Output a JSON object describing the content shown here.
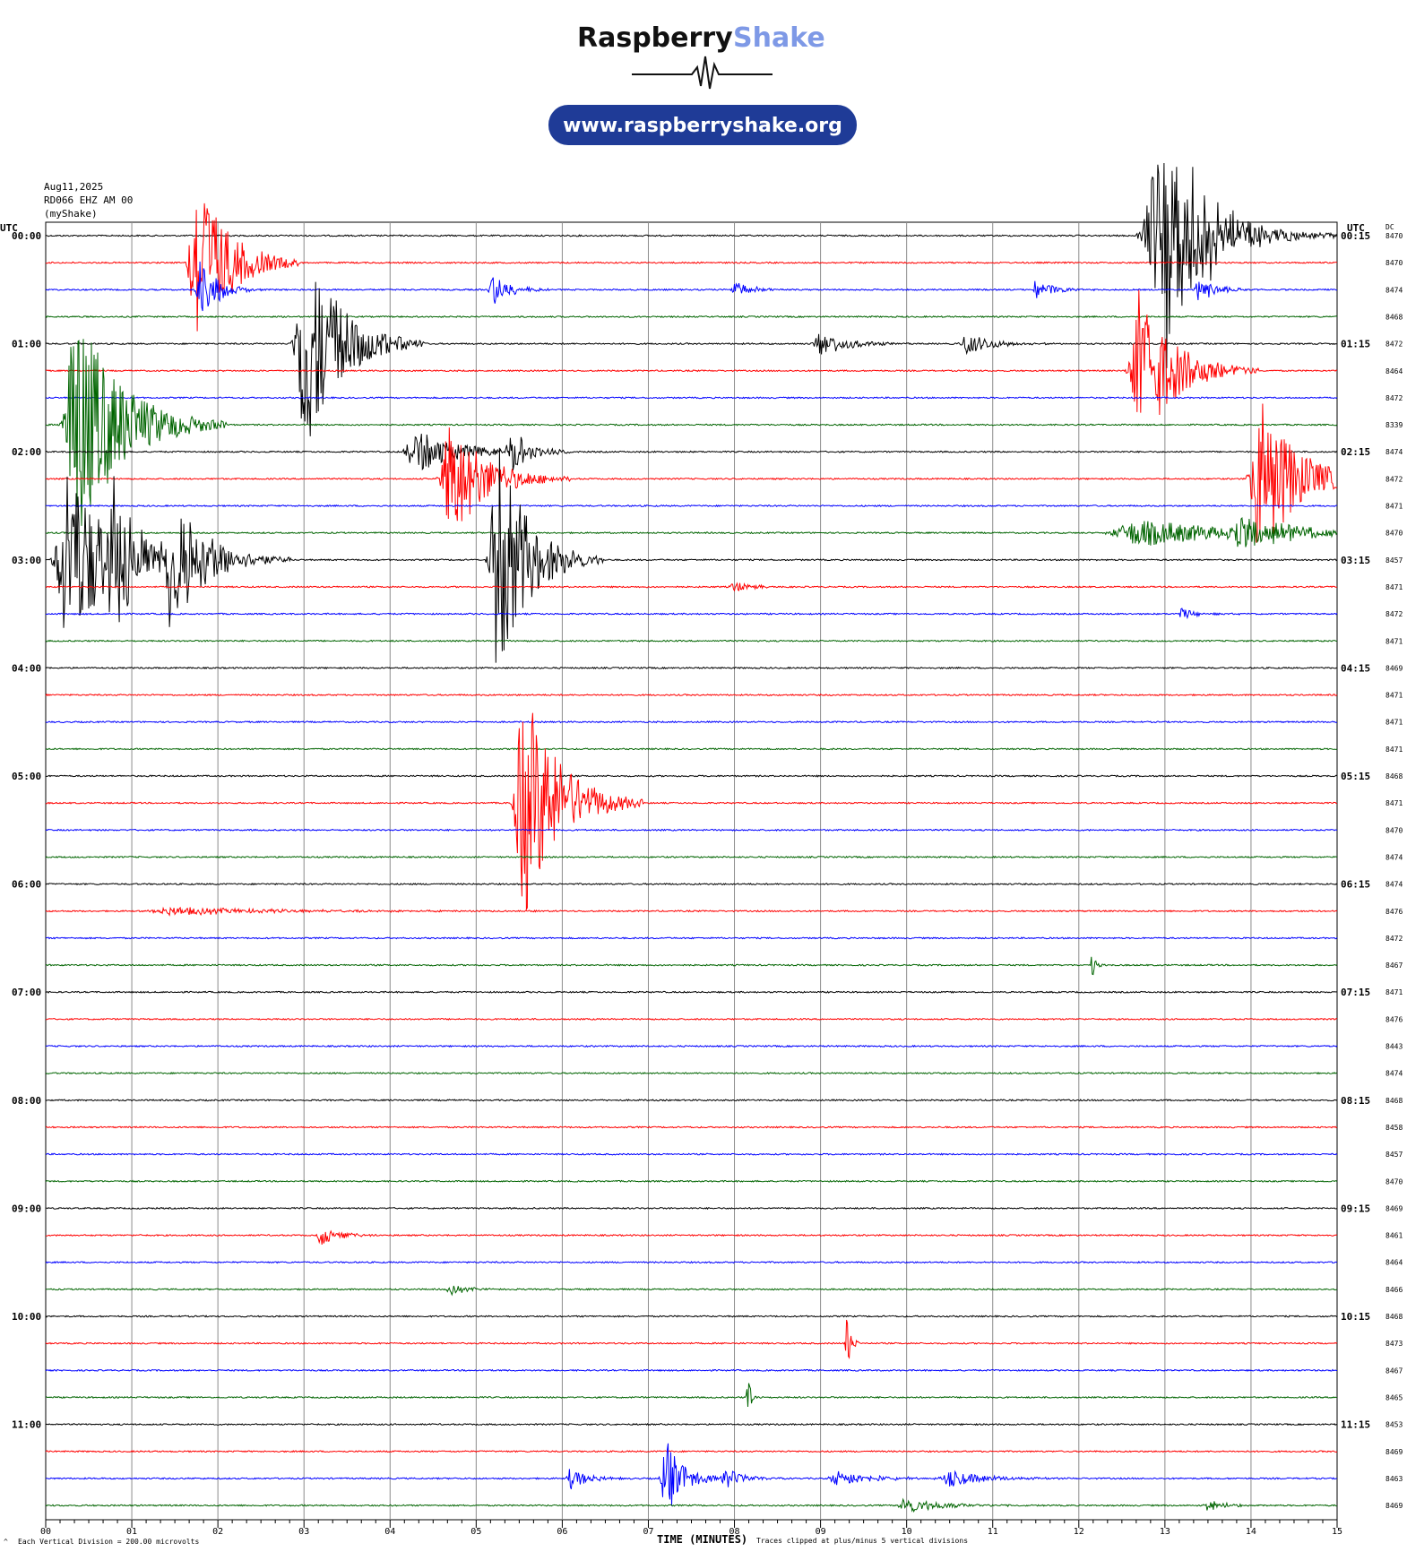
{
  "header": {
    "brand_word1": "Raspberry",
    "brand_word2": "Shake",
    "url_button": "www.raspberryshake.org"
  },
  "meta": {
    "date": "Aug11,2025",
    "station": "RD066 EHZ AM 00",
    "source": "(myShake)"
  },
  "axes": {
    "left_unit": "UTC",
    "right_unit": "UTC",
    "dc_label": "DC",
    "x_title": "TIME (MINUTES)",
    "x_ticks": [
      "00",
      "01",
      "02",
      "03",
      "04",
      "05",
      "06",
      "07",
      "08",
      "09",
      "10",
      "11",
      "12",
      "13",
      "14",
      "15"
    ]
  },
  "footer": {
    "scale_note": "Each Vertical Division =  200.00 microvolts",
    "clip_note": "Traces clipped at plus/minus 5 vertical divisions"
  },
  "colors": {
    "trace_cycle": [
      "#000000",
      "#ff0000",
      "#0000ff",
      "#006400"
    ],
    "brand_dark": "#111111",
    "brand_accent": "#7e99e6",
    "url_bg": "#1f3b97",
    "grid": "#808080"
  },
  "chart_data": {
    "type": "line",
    "title": "RD066 EHZ AM 00",
    "xlabel": "TIME (MINUTES)",
    "ylabel": "UTC",
    "xlim": [
      0,
      15
    ],
    "rows": [
      {
        "utc_left": "00:00",
        "utc_right": "00:15",
        "dc": "8470",
        "events": [
          [
            13.0,
            4.2,
            0.35
          ],
          [
            12.9,
            2.6,
            0.6
          ]
        ]
      },
      {
        "utc_left": "",
        "utc_right": "",
        "dc": "8470",
        "events": [
          [
            1.75,
            3.5,
            0.35
          ]
        ]
      },
      {
        "utc_left": "",
        "utc_right": "",
        "dc": "8474",
        "events": [
          [
            1.8,
            1.2,
            0.2
          ],
          [
            5.2,
            0.6,
            0.2
          ],
          [
            8.0,
            0.3,
            0.2
          ],
          [
            11.5,
            0.4,
            0.2
          ],
          [
            13.4,
            0.5,
            0.2
          ]
        ]
      },
      {
        "utc_left": "",
        "utc_right": "",
        "dc": "8468",
        "events": []
      },
      {
        "utc_left": "01:00",
        "utc_right": "01:15",
        "dc": "8472",
        "events": [
          [
            3.0,
            4.2,
            0.4
          ],
          [
            9.0,
            0.5,
            0.3
          ],
          [
            10.7,
            0.4,
            0.3
          ]
        ]
      },
      {
        "utc_left": "",
        "utc_right": "",
        "dc": "8464",
        "events": [
          [
            12.7,
            3.0,
            0.4
          ]
        ]
      },
      {
        "utc_left": "",
        "utc_right": "",
        "dc": "8472",
        "events": []
      },
      {
        "utc_left": "",
        "utc_right": "",
        "dc": "8339",
        "events": [
          [
            0.35,
            4.6,
            0.5
          ]
        ]
      },
      {
        "utc_left": "02:00",
        "utc_right": "02:15",
        "dc": "8474",
        "events": [
          [
            4.3,
            0.8,
            0.5
          ],
          [
            5.4,
            0.9,
            0.2
          ]
        ]
      },
      {
        "utc_left": "",
        "utc_right": "",
        "dc": "8472",
        "events": [
          [
            4.7,
            2.3,
            0.4
          ],
          [
            14.1,
            3.3,
            0.4
          ]
        ]
      },
      {
        "utc_left": "",
        "utc_right": "",
        "dc": "8471",
        "events": []
      },
      {
        "utc_left": "",
        "utc_right": "",
        "dc": "8470",
        "events": [
          [
            12.7,
            0.5,
            1.2
          ],
          [
            13.9,
            0.6,
            0.6
          ]
        ]
      },
      {
        "utc_left": "03:00",
        "utc_right": "03:15",
        "dc": "8457",
        "events": [
          [
            0.25,
            3.6,
            0.5
          ],
          [
            0.8,
            2.2,
            0.3
          ],
          [
            1.45,
            2.6,
            0.4
          ],
          [
            5.25,
            4.4,
            0.35
          ]
        ]
      },
      {
        "utc_left": "",
        "utc_right": "",
        "dc": "8471",
        "events": [
          [
            8.0,
            0.2,
            0.2
          ]
        ]
      },
      {
        "utc_left": "",
        "utc_right": "",
        "dc": "8472",
        "events": [
          [
            13.2,
            0.2,
            0.2
          ]
        ]
      },
      {
        "utc_left": "",
        "utc_right": "",
        "dc": "8471",
        "events": []
      },
      {
        "utc_left": "04:00",
        "utc_right": "04:15",
        "dc": "8469",
        "events": []
      },
      {
        "utc_left": "",
        "utc_right": "",
        "dc": "8471",
        "events": []
      },
      {
        "utc_left": "",
        "utc_right": "",
        "dc": "8471",
        "events": []
      },
      {
        "utc_left": "",
        "utc_right": "",
        "dc": "8471",
        "events": []
      },
      {
        "utc_left": "05:00",
        "utc_right": "05:15",
        "dc": "8468",
        "events": []
      },
      {
        "utc_left": "",
        "utc_right": "",
        "dc": "8471",
        "events": [
          [
            5.55,
            4.4,
            0.4
          ]
        ]
      },
      {
        "utc_left": "",
        "utc_right": "",
        "dc": "8470",
        "events": []
      },
      {
        "utc_left": "",
        "utc_right": "",
        "dc": "8474",
        "events": []
      },
      {
        "utc_left": "06:00",
        "utc_right": "06:15",
        "dc": "8474",
        "events": []
      },
      {
        "utc_left": "",
        "utc_right": "",
        "dc": "8476",
        "events": [
          [
            1.5,
            0.15,
            1.2
          ]
        ]
      },
      {
        "utc_left": "",
        "utc_right": "",
        "dc": "8472",
        "events": []
      },
      {
        "utc_left": "",
        "utc_right": "",
        "dc": "8467",
        "events": [
          [
            12.15,
            0.5,
            0.05
          ]
        ]
      },
      {
        "utc_left": "07:00",
        "utc_right": "07:15",
        "dc": "8471",
        "events": []
      },
      {
        "utc_left": "",
        "utc_right": "",
        "dc": "8476",
        "events": []
      },
      {
        "utc_left": "",
        "utc_right": "",
        "dc": "8443",
        "events": []
      },
      {
        "utc_left": "",
        "utc_right": "",
        "dc": "8474",
        "events": []
      },
      {
        "utc_left": "08:00",
        "utc_right": "08:15",
        "dc": "8468",
        "events": []
      },
      {
        "utc_left": "",
        "utc_right": "",
        "dc": "8458",
        "events": []
      },
      {
        "utc_left": "",
        "utc_right": "",
        "dc": "8457",
        "events": []
      },
      {
        "utc_left": "",
        "utc_right": "",
        "dc": "8470",
        "events": []
      },
      {
        "utc_left": "09:00",
        "utc_right": "09:15",
        "dc": "8469",
        "events": []
      },
      {
        "utc_left": "",
        "utc_right": "",
        "dc": "8461",
        "events": [
          [
            3.2,
            0.4,
            0.2
          ]
        ]
      },
      {
        "utc_left": "",
        "utc_right": "",
        "dc": "8464",
        "events": []
      },
      {
        "utc_left": "",
        "utc_right": "",
        "dc": "8466",
        "events": [
          [
            4.7,
            0.2,
            0.2
          ]
        ]
      },
      {
        "utc_left": "10:00",
        "utc_right": "10:15",
        "dc": "8468",
        "events": []
      },
      {
        "utc_left": "",
        "utc_right": "",
        "dc": "8473",
        "events": [
          [
            9.3,
            1.2,
            0.05
          ]
        ]
      },
      {
        "utc_left": "",
        "utc_right": "",
        "dc": "8467",
        "events": []
      },
      {
        "utc_left": "",
        "utc_right": "",
        "dc": "8465",
        "events": [
          [
            8.15,
            0.8,
            0.05
          ]
        ]
      },
      {
        "utc_left": "11:00",
        "utc_right": "11:15",
        "dc": "8453",
        "events": []
      },
      {
        "utc_left": "",
        "utc_right": "",
        "dc": "8469",
        "events": []
      },
      {
        "utc_left": "",
        "utc_right": "",
        "dc": "8463",
        "events": [
          [
            6.1,
            0.4,
            0.2
          ],
          [
            7.2,
            1.5,
            0.2
          ],
          [
            7.9,
            0.4,
            0.2
          ],
          [
            9.2,
            0.3,
            0.4
          ],
          [
            10.5,
            0.3,
            0.4
          ]
        ]
      },
      {
        "utc_left": "",
        "utc_right": "",
        "dc": "8469",
        "events": [
          [
            10.0,
            0.3,
            0.4
          ],
          [
            13.5,
            0.2,
            0.2
          ]
        ]
      }
    ]
  }
}
